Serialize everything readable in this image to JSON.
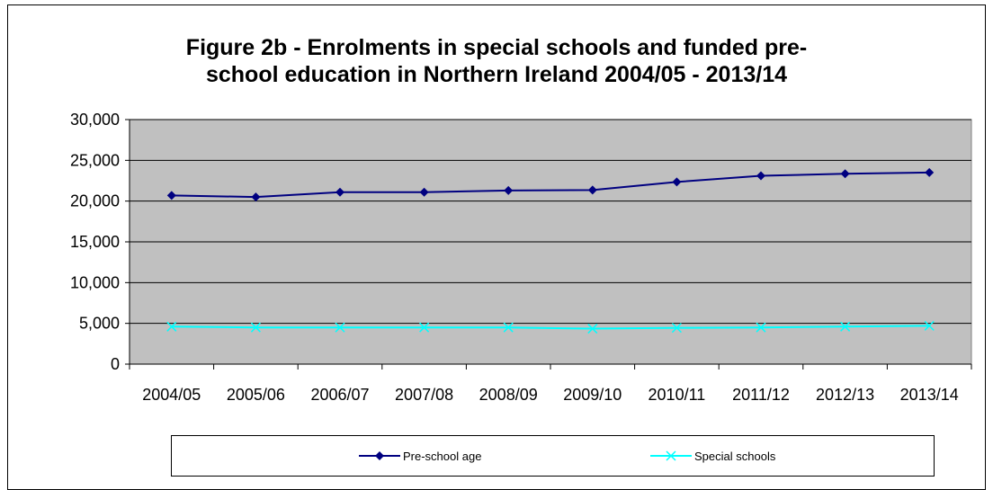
{
  "chart_data": {
    "type": "line",
    "title_line1": "Figure 2b - Enrolments in special schools and funded pre-",
    "title_line2": "school education in Northern Ireland 2004/05 - 2013/14",
    "categories": [
      "2004/05",
      "2005/06",
      "2006/07",
      "2007/08",
      "2008/09",
      "2009/10",
      "2010/11",
      "2011/12",
      "2012/13",
      "2013/14"
    ],
    "ylim": [
      0,
      30000
    ],
    "y_ticks": [
      0,
      5000,
      10000,
      15000,
      20000,
      25000,
      30000
    ],
    "y_tick_labels": [
      "0",
      "5,000",
      "10,000",
      "15,000",
      "20,000",
      "25,000",
      "30,000"
    ],
    "grid": true,
    "plot_background": "#c0c0c0",
    "legend_position": "bottom",
    "series": [
      {
        "name": "Pre-school age",
        "color": "#000080",
        "marker": "diamond",
        "values": [
          20700,
          20500,
          21100,
          21100,
          21300,
          21350,
          22350,
          23100,
          23350,
          23500
        ]
      },
      {
        "name": "Special schools",
        "color": "#00ffff",
        "marker": "x",
        "values": [
          4600,
          4500,
          4500,
          4500,
          4500,
          4350,
          4450,
          4500,
          4600,
          4700
        ]
      }
    ]
  }
}
